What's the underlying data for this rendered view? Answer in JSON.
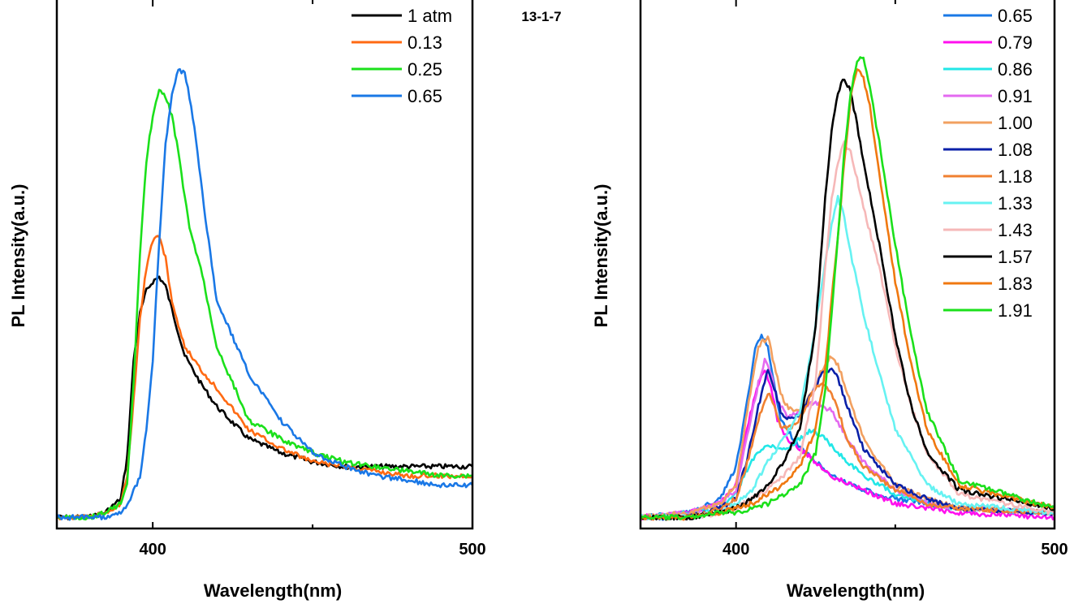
{
  "sample_label": "13-1-7",
  "chart_data": [
    {
      "type": "line",
      "title": "",
      "xlabel": "Wavelength(nm)",
      "ylabel": "PL Intensity(a.u.)",
      "xlim": [
        370,
        500
      ],
      "ylim": [
        0,
        1.02
      ],
      "xticks": [
        "400",
        "500"
      ],
      "yticks": [],
      "grid": false,
      "legend_position": "top-right",
      "series": [
        {
          "name": "1 atm",
          "color": "#000000",
          "x": [
            370,
            380,
            385,
            390,
            392,
            394,
            396,
            398,
            400,
            402,
            404,
            406,
            408,
            410,
            415,
            420,
            430,
            440,
            450,
            460,
            470,
            480,
            490,
            500
          ],
          "y": [
            0.01,
            0.01,
            0.02,
            0.05,
            0.14,
            0.35,
            0.45,
            0.5,
            0.52,
            0.53,
            0.51,
            0.46,
            0.41,
            0.36,
            0.3,
            0.25,
            0.18,
            0.15,
            0.13,
            0.12,
            0.12,
            0.12,
            0.12,
            0.12
          ]
        },
        {
          "name": "0.13",
          "color": "#ff6a13",
          "x": [
            370,
            380,
            385,
            390,
            392,
            394,
            396,
            398,
            400,
            402,
            404,
            406,
            408,
            410,
            415,
            420,
            430,
            440,
            450,
            460,
            470,
            480,
            490,
            500
          ],
          "y": [
            0.01,
            0.01,
            0.02,
            0.04,
            0.1,
            0.26,
            0.44,
            0.55,
            0.61,
            0.62,
            0.57,
            0.48,
            0.42,
            0.38,
            0.33,
            0.29,
            0.2,
            0.16,
            0.13,
            0.12,
            0.11,
            0.1,
            0.1,
            0.1
          ]
        },
        {
          "name": "0.25",
          "color": "#1be01b",
          "x": [
            370,
            380,
            385,
            390,
            392,
            394,
            396,
            398,
            400,
            402,
            404,
            406,
            408,
            410,
            412,
            415,
            420,
            425,
            430,
            440,
            450,
            460,
            470,
            480,
            490,
            500
          ],
          "y": [
            0.01,
            0.01,
            0.02,
            0.04,
            0.08,
            0.3,
            0.58,
            0.78,
            0.88,
            0.93,
            0.92,
            0.88,
            0.8,
            0.7,
            0.62,
            0.55,
            0.38,
            0.3,
            0.22,
            0.18,
            0.15,
            0.13,
            0.12,
            0.11,
            0.1,
            0.1
          ]
        },
        {
          "name": "0.65",
          "color": "#1a78e6",
          "x": [
            370,
            380,
            385,
            390,
            393,
            396,
            398,
            400,
            402,
            404,
            406,
            408,
            410,
            412,
            414,
            416,
            418,
            420,
            425,
            430,
            440,
            450,
            460,
            470,
            480,
            490,
            500
          ],
          "y": [
            0.01,
            0.01,
            0.01,
            0.02,
            0.05,
            0.1,
            0.2,
            0.35,
            0.6,
            0.82,
            0.92,
            0.98,
            0.97,
            0.9,
            0.8,
            0.68,
            0.58,
            0.48,
            0.4,
            0.32,
            0.22,
            0.15,
            0.12,
            0.1,
            0.09,
            0.08,
            0.08
          ]
        }
      ]
    },
    {
      "type": "line",
      "title": "",
      "xlabel": "Wavelength(nm)",
      "ylabel": "PL Intensity(a.u.)",
      "xlim": [
        370,
        500
      ],
      "ylim": [
        0,
        1.02
      ],
      "xticks": [
        "400",
        "500"
      ],
      "yticks": [],
      "grid": false,
      "legend_position": "top-right",
      "series": [
        {
          "name": "0.65",
          "color": "#1a78e6",
          "x": [
            370,
            385,
            395,
            400,
            404,
            406,
            408,
            410,
            412,
            414,
            416,
            420,
            425,
            430,
            440,
            450,
            460,
            470,
            500
          ],
          "y": [
            0.01,
            0.02,
            0.05,
            0.12,
            0.28,
            0.38,
            0.4,
            0.38,
            0.3,
            0.22,
            0.2,
            0.16,
            0.13,
            0.1,
            0.07,
            0.05,
            0.04,
            0.03,
            0.02
          ]
        },
        {
          "name": "0.79",
          "color": "#ff10ee",
          "x": [
            370,
            385,
            395,
            400,
            404,
            407,
            409,
            411,
            413,
            416,
            420,
            425,
            430,
            440,
            450,
            460,
            470,
            500
          ],
          "y": [
            0.01,
            0.02,
            0.04,
            0.08,
            0.22,
            0.3,
            0.33,
            0.29,
            0.22,
            0.18,
            0.16,
            0.13,
            0.1,
            0.07,
            0.04,
            0.03,
            0.02,
            0.01
          ]
        },
        {
          "name": "0.86",
          "color": "#22e7e7",
          "x": [
            370,
            385,
            395,
            400,
            404,
            407,
            410,
            413,
            416,
            420,
            424,
            428,
            432,
            440,
            450,
            460,
            470,
            500
          ],
          "y": [
            0.01,
            0.02,
            0.03,
            0.06,
            0.12,
            0.15,
            0.17,
            0.16,
            0.16,
            0.18,
            0.2,
            0.18,
            0.15,
            0.1,
            0.06,
            0.04,
            0.03,
            0.02
          ]
        },
        {
          "name": "0.91",
          "color": "#e46af0",
          "x": [
            370,
            385,
            395,
            400,
            404,
            407,
            409,
            411,
            413,
            416,
            420,
            425,
            430,
            435,
            440,
            450,
            460,
            470,
            500
          ],
          "y": [
            0.01,
            0.02,
            0.04,
            0.07,
            0.2,
            0.3,
            0.35,
            0.32,
            0.26,
            0.23,
            0.24,
            0.26,
            0.24,
            0.18,
            0.13,
            0.07,
            0.04,
            0.03,
            0.02
          ]
        },
        {
          "name": "1.00",
          "color": "#f2a060",
          "x": [
            370,
            385,
            395,
            400,
            404,
            407,
            410,
            412,
            414,
            416,
            420,
            424,
            427,
            430,
            432,
            435,
            440,
            450,
            460,
            470,
            500
          ],
          "y": [
            0.01,
            0.02,
            0.04,
            0.08,
            0.26,
            0.38,
            0.4,
            0.34,
            0.28,
            0.25,
            0.24,
            0.28,
            0.33,
            0.36,
            0.34,
            0.28,
            0.18,
            0.08,
            0.05,
            0.03,
            0.02
          ]
        },
        {
          "name": "1.08",
          "color": "#0a20a8",
          "x": [
            370,
            385,
            395,
            400,
            404,
            407,
            410,
            412,
            414,
            416,
            420,
            424,
            427,
            430,
            432,
            435,
            440,
            450,
            460,
            470,
            500
          ],
          "y": [
            0.01,
            0.01,
            0.03,
            0.05,
            0.15,
            0.25,
            0.33,
            0.29,
            0.24,
            0.22,
            0.23,
            0.28,
            0.32,
            0.33,
            0.31,
            0.25,
            0.16,
            0.08,
            0.05,
            0.03,
            0.02
          ]
        },
        {
          "name": "1.18",
          "color": "#f08030",
          "x": [
            370,
            385,
            395,
            400,
            404,
            407,
            410,
            412,
            414,
            416,
            420,
            424,
            427,
            430,
            432,
            435,
            440,
            450,
            460,
            470,
            500
          ],
          "y": [
            0.01,
            0.01,
            0.03,
            0.05,
            0.14,
            0.22,
            0.28,
            0.25,
            0.21,
            0.2,
            0.22,
            0.28,
            0.3,
            0.28,
            0.24,
            0.18,
            0.12,
            0.07,
            0.04,
            0.03,
            0.02
          ]
        },
        {
          "name": "1.33",
          "color": "#66f2f2",
          "x": [
            370,
            385,
            395,
            400,
            405,
            410,
            415,
            420,
            424,
            427,
            430,
            432,
            434,
            436,
            438,
            440,
            445,
            450,
            460,
            470,
            500
          ],
          "y": [
            0.01,
            0.01,
            0.02,
            0.04,
            0.07,
            0.13,
            0.18,
            0.24,
            0.38,
            0.52,
            0.64,
            0.7,
            0.66,
            0.58,
            0.52,
            0.45,
            0.32,
            0.2,
            0.08,
            0.04,
            0.02
          ]
        },
        {
          "name": "1.43",
          "color": "#f6b8b8",
          "x": [
            370,
            385,
            395,
            400,
            405,
            410,
            415,
            420,
            425,
            428,
            430,
            432,
            434,
            436,
            438,
            440,
            445,
            450,
            455,
            460,
            470,
            500
          ],
          "y": [
            0.01,
            0.01,
            0.02,
            0.03,
            0.05,
            0.07,
            0.1,
            0.14,
            0.3,
            0.55,
            0.7,
            0.78,
            0.82,
            0.8,
            0.74,
            0.68,
            0.55,
            0.38,
            0.25,
            0.15,
            0.06,
            0.02
          ]
        },
        {
          "name": "1.57",
          "color": "#000000",
          "x": [
            370,
            385,
            395,
            400,
            405,
            410,
            415,
            420,
            425,
            428,
            430,
            432,
            434,
            436,
            438,
            440,
            445,
            450,
            455,
            460,
            470,
            500
          ],
          "y": [
            0.01,
            0.01,
            0.02,
            0.03,
            0.05,
            0.08,
            0.13,
            0.2,
            0.42,
            0.7,
            0.85,
            0.93,
            0.96,
            0.93,
            0.86,
            0.78,
            0.6,
            0.4,
            0.25,
            0.15,
            0.07,
            0.03
          ]
        },
        {
          "name": "1.83",
          "color": "#f07810",
          "x": [
            370,
            385,
            395,
            400,
            405,
            410,
            415,
            420,
            425,
            428,
            430,
            432,
            434,
            436,
            438,
            440,
            442,
            445,
            450,
            455,
            460,
            470,
            500
          ],
          "y": [
            0.01,
            0.01,
            0.02,
            0.03,
            0.04,
            0.06,
            0.08,
            0.12,
            0.2,
            0.33,
            0.48,
            0.62,
            0.78,
            0.92,
            0.98,
            0.96,
            0.9,
            0.75,
            0.52,
            0.34,
            0.2,
            0.08,
            0.03
          ]
        },
        {
          "name": "1.91",
          "color": "#1be01b",
          "x": [
            370,
            385,
            395,
            400,
            405,
            410,
            415,
            420,
            425,
            428,
            430,
            432,
            434,
            436,
            438,
            440,
            442,
            445,
            450,
            455,
            460,
            470,
            500
          ],
          "y": [
            0.01,
            0.01,
            0.02,
            0.02,
            0.03,
            0.04,
            0.06,
            0.08,
            0.15,
            0.28,
            0.45,
            0.62,
            0.8,
            0.93,
            1.0,
            1.0,
            0.94,
            0.82,
            0.6,
            0.4,
            0.24,
            0.09,
            0.03
          ]
        }
      ]
    }
  ]
}
